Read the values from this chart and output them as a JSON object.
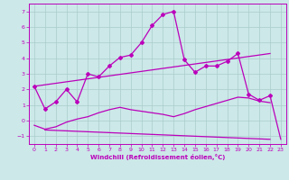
{
  "background_color": "#cce8e8",
  "grid_color": "#aacccc",
  "line_color": "#bb00bb",
  "xlabel": "Windchill (Refroidissement éolien,°C)",
  "xlim": [
    -0.5,
    23.5
  ],
  "ylim": [
    -1.5,
    7.5
  ],
  "xticks": [
    0,
    1,
    2,
    3,
    4,
    5,
    6,
    7,
    8,
    9,
    10,
    11,
    12,
    13,
    14,
    15,
    16,
    17,
    18,
    19,
    20,
    21,
    22,
    23
  ],
  "yticks": [
    -1,
    0,
    1,
    2,
    3,
    4,
    5,
    6,
    7
  ],
  "series1_x": [
    0,
    1,
    2,
    3,
    4,
    5,
    6,
    7,
    8,
    9,
    10,
    11,
    12,
    13,
    14,
    15,
    16,
    17,
    18,
    19,
    20,
    21,
    22
  ],
  "series1_y": [
    2.2,
    0.75,
    1.2,
    2.0,
    1.2,
    3.0,
    2.8,
    3.5,
    4.05,
    4.2,
    5.0,
    6.1,
    6.8,
    7.0,
    3.9,
    3.1,
    3.5,
    3.5,
    3.8,
    4.3,
    1.7,
    1.3,
    1.6
  ],
  "series2_x": [
    0,
    22
  ],
  "series2_y": [
    2.2,
    4.3
  ],
  "series3_x": [
    1,
    22
  ],
  "series3_y": [
    -0.6,
    -1.2
  ],
  "series4_x": [
    0,
    1,
    2,
    3,
    4,
    5,
    6,
    7,
    8,
    9,
    10,
    11,
    12,
    13,
    14,
    15,
    16,
    17,
    18,
    19,
    20,
    21,
    22
  ],
  "series4_y": [
    -0.3,
    -0.55,
    -0.4,
    -0.1,
    0.1,
    0.25,
    0.5,
    0.7,
    0.85,
    0.7,
    0.6,
    0.5,
    0.4,
    0.25,
    0.45,
    0.7,
    0.9,
    1.1,
    1.3,
    1.5,
    1.45,
    1.25,
    1.15
  ],
  "series5_x": [
    22,
    23
  ],
  "series5_y": [
    1.6,
    -1.2
  ]
}
